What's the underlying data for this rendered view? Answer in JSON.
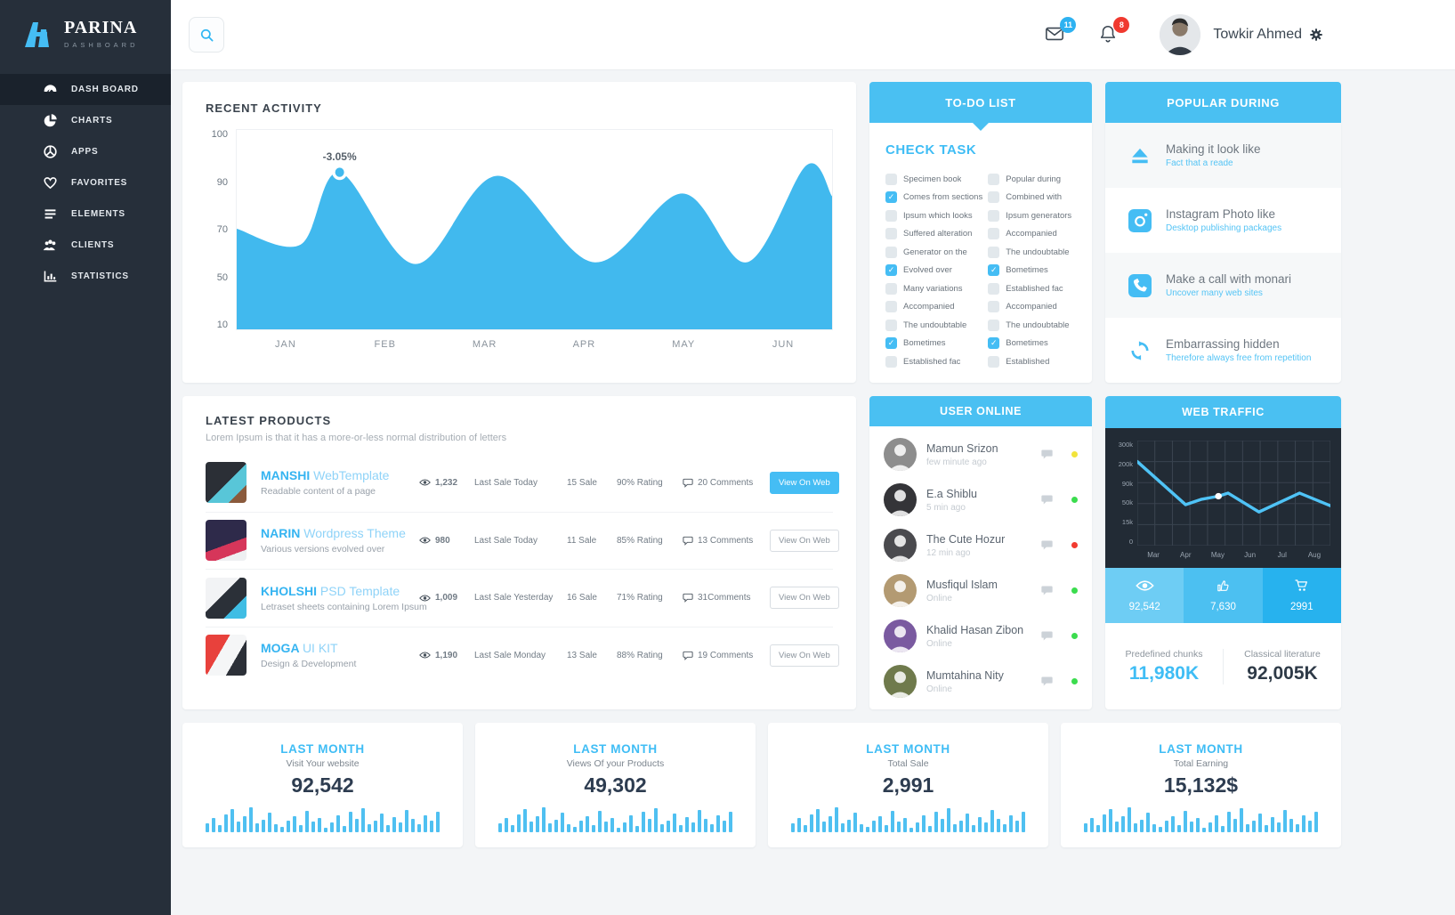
{
  "colors": {
    "accent": "#45bdf4",
    "header_blue": "#4ac0f2",
    "area_fill": "#41b9ee",
    "dark_panel": "#222b35",
    "grid_line": "#39434f",
    "line_blue": "#4fc3f6",
    "badge_blue": "#2eb2f1",
    "badge_red": "#f0392f"
  },
  "brand": {
    "name": "PARINA",
    "sub": "DASHBOARD"
  },
  "topbar": {
    "messages_count": "11",
    "notifications_count": "8",
    "user_name": "Towkir Ahmed"
  },
  "sidebar": {
    "items": [
      {
        "label": "DASH BOARD",
        "icon": "dashboard",
        "active": true
      },
      {
        "label": "CHARTS",
        "icon": "charts",
        "active": false
      },
      {
        "label": "APPS",
        "icon": "apps",
        "active": false
      },
      {
        "label": "FAVORITES",
        "icon": "favorites",
        "active": false
      },
      {
        "label": "ELEMENTS",
        "icon": "elements",
        "active": false
      },
      {
        "label": "CLIENTS",
        "icon": "clients",
        "active": false
      },
      {
        "label": "STATISTICS",
        "icon": "statistics",
        "active": false
      }
    ]
  },
  "recent_activity": {
    "title": "RECENT ACTIVITY",
    "chart_data": {
      "type": "area",
      "yticks": [
        "100",
        "90",
        "70",
        "50",
        "10"
      ],
      "xticks": [
        "JAN",
        "FEB",
        "MAR",
        "APR",
        "MAY",
        "JUN"
      ],
      "points": [
        [
          0,
          112
        ],
        [
          75,
          130
        ],
        [
          121,
          48
        ],
        [
          210,
          152
        ],
        [
          307,
          52
        ],
        [
          420,
          150
        ],
        [
          524,
          72
        ],
        [
          600,
          150
        ],
        [
          670,
          40
        ],
        [
          700,
          75
        ]
      ],
      "marker": {
        "x": 121,
        "y": 48,
        "label": "-3.05%"
      },
      "ylim": [
        10,
        100
      ]
    }
  },
  "todo": {
    "title": "TO-DO LIST",
    "heading": "CHECK TASK",
    "columns": [
      [
        {
          "label": "Specimen book",
          "checked": false
        },
        {
          "label": "Comes from sections",
          "checked": true
        },
        {
          "label": "Ipsum which looks",
          "checked": false
        },
        {
          "label": "Suffered alteration",
          "checked": false
        },
        {
          "label": "Generator on the",
          "checked": false
        },
        {
          "label": "Evolved over",
          "checked": true
        },
        {
          "label": "Many variations",
          "checked": false
        },
        {
          "label": "Accompanied",
          "checked": false
        },
        {
          "label": "The undoubtable",
          "checked": false
        },
        {
          "label": "Bometimes",
          "checked": true
        },
        {
          "label": "Established fac",
          "checked": false
        }
      ],
      [
        {
          "label": "Popular during",
          "checked": false
        },
        {
          "label": "Combined with",
          "checked": false
        },
        {
          "label": "Ipsum generators",
          "checked": false
        },
        {
          "label": "Accompanied",
          "checked": false
        },
        {
          "label": "The undoubtable",
          "checked": false
        },
        {
          "label": "Bometimes",
          "checked": true
        },
        {
          "label": "Established fac",
          "checked": false
        },
        {
          "label": "Accompanied",
          "checked": false
        },
        {
          "label": "The undoubtable",
          "checked": false
        },
        {
          "label": "Bometimes",
          "checked": true
        },
        {
          "label": "Established",
          "checked": false
        }
      ]
    ]
  },
  "popular": {
    "title": "POPULAR DURING",
    "items": [
      {
        "icon": "eject",
        "title": "Making it look like",
        "subtitle": "Fact that a reade"
      },
      {
        "icon": "instagram",
        "title": "Instagram Photo like",
        "subtitle": "Desktop publishing packages"
      },
      {
        "icon": "phone",
        "title": "Make a call with monari",
        "subtitle": "Uncover many web sites"
      },
      {
        "icon": "refresh",
        "title": "Embarrassing hidden",
        "subtitle": "Therefore always free from repetition"
      }
    ]
  },
  "products": {
    "title": "LATEST PRODUCTS",
    "subtitle": "Lorem Ipsum is that it has a more-or-less normal distribution of letters",
    "rows": [
      {
        "name_bold": "MANSHI",
        "name_light": "WebTemplate",
        "desc": "Readable content of a page",
        "views": "1,232",
        "last_sale": "Last Sale Today",
        "sale": "15 Sale",
        "rating": "90%  Rating",
        "comments": "20 Comments",
        "button": "View On Web",
        "button_style": "primary",
        "thumb": "manshi"
      },
      {
        "name_bold": "NARIN",
        "name_light": "Wordpress Theme",
        "desc": "Various versions evolved over",
        "views": "980",
        "last_sale": "Last Sale Today",
        "sale": "11 Sale",
        "rating": "85%  Rating",
        "comments": "13 Comments",
        "button": "View On Web",
        "button_style": "default",
        "thumb": "narin"
      },
      {
        "name_bold": "KHOLSHI",
        "name_light": "PSD Template",
        "desc": "Letraset sheets containing Lorem Ipsum",
        "views": "1,009",
        "last_sale": "Last Sale Yesterday",
        "sale": "16 Sale",
        "rating": "71%  Rating",
        "comments": "31Comments",
        "button": "View On Web",
        "button_style": "default",
        "thumb": "kholshi"
      },
      {
        "name_bold": "MOGA",
        "name_light": "UI KIT",
        "desc": "Design & Development",
        "views": "1,190",
        "last_sale": "Last Sale Monday",
        "sale": "13 Sale",
        "rating": "88%  Rating",
        "comments": "19 Comments",
        "button": "View On Web",
        "button_style": "default",
        "thumb": "moga"
      }
    ]
  },
  "users": {
    "title": "USER ONLINE",
    "rows": [
      {
        "name": "Mamun Srizon",
        "time": "few minute ago",
        "status": "#f2e43c",
        "avatar_bg": "#8d8d8d"
      },
      {
        "name": "E.a Shiblu",
        "time": "5 min ago",
        "status": "#3bdc4e",
        "avatar_bg": "#343438"
      },
      {
        "name": "The Cute Hozur",
        "time": "12 min ago",
        "status": "#f23b30",
        "avatar_bg": "#4a4a4e"
      },
      {
        "name": "Musfiqul Islam",
        "time": "Online",
        "status": "#3bdc4e",
        "avatar_bg": "#b39a72"
      },
      {
        "name": "Khalid Hasan Zibon",
        "time": "Online",
        "status": "#3bdc4e",
        "avatar_bg": "#7a5aa0"
      },
      {
        "name": "Mumtahina Nity",
        "time": "Online",
        "status": "#3bdc4e",
        "avatar_bg": "#6f7a4c"
      }
    ]
  },
  "traffic": {
    "title": "WEB TRAFFIC",
    "chart_data": {
      "type": "line",
      "yticks": [
        "300k",
        "200k",
        "90k",
        "50k",
        "15k",
        "0"
      ],
      "xticks": [
        "Mar",
        "Apr",
        "May",
        "Jun",
        "Jul",
        "Aug"
      ],
      "points_frac": [
        [
          0,
          0.2
        ],
        [
          0.25,
          0.61
        ],
        [
          0.33,
          0.56
        ],
        [
          0.42,
          0.53
        ],
        [
          0.47,
          0.5
        ],
        [
          0.63,
          0.68
        ],
        [
          0.84,
          0.5
        ],
        [
          1,
          0.62
        ]
      ],
      "marker_index": 3,
      "grid": true
    },
    "stats": [
      {
        "icon": "eye",
        "value": "92,542",
        "bg": "#6ecdf4"
      },
      {
        "icon": "thumb",
        "value": "7,630",
        "bg": "#4cc0f1"
      },
      {
        "icon": "cart",
        "value": "2991",
        "bg": "#27b2ee"
      }
    ],
    "footer": [
      {
        "label": "Predefined chunks",
        "value": "11,980K",
        "style": "blue"
      },
      {
        "label": "Classical literature",
        "value": "92,005K",
        "style": "dark"
      }
    ]
  },
  "cards": {
    "bars": [
      10,
      16,
      8,
      20,
      26,
      12,
      18,
      28,
      10,
      14,
      22,
      9,
      6,
      13,
      18,
      8,
      24,
      12,
      16,
      5,
      11,
      19,
      7,
      23,
      15,
      27,
      9,
      13,
      21,
      8,
      17,
      11,
      25,
      15,
      9,
      19,
      13,
      23
    ],
    "items": [
      {
        "title": "LAST MONTH",
        "subtitle": "Visit Your website",
        "value": "92,542"
      },
      {
        "title": "LAST MONTH",
        "subtitle": "Views Of your Products",
        "value": "49,302"
      },
      {
        "title": "LAST MONTH",
        "subtitle": "Total Sale",
        "value": "2,991"
      },
      {
        "title": "LAST MONTH",
        "subtitle": "Total Earning",
        "value": "15,132$"
      }
    ]
  }
}
